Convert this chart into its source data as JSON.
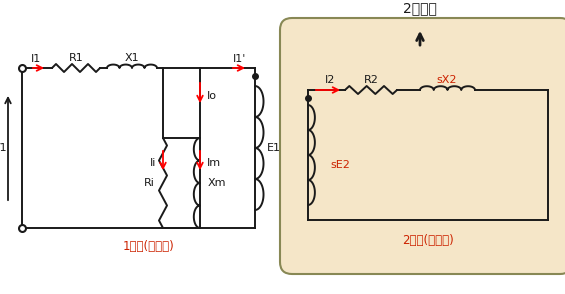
{
  "bg_color": "#ffffff",
  "box2_color": "#f5e6c8",
  "line_color": "#1a1a1a",
  "red_color": "#ff0000",
  "dark_color": "#333333",
  "title_text": "2차저항",
  "label1": "1차측(고정자)",
  "label2": "2차측(회전자)",
  "figsize": [
    5.65,
    2.94
  ],
  "dpi": 100
}
